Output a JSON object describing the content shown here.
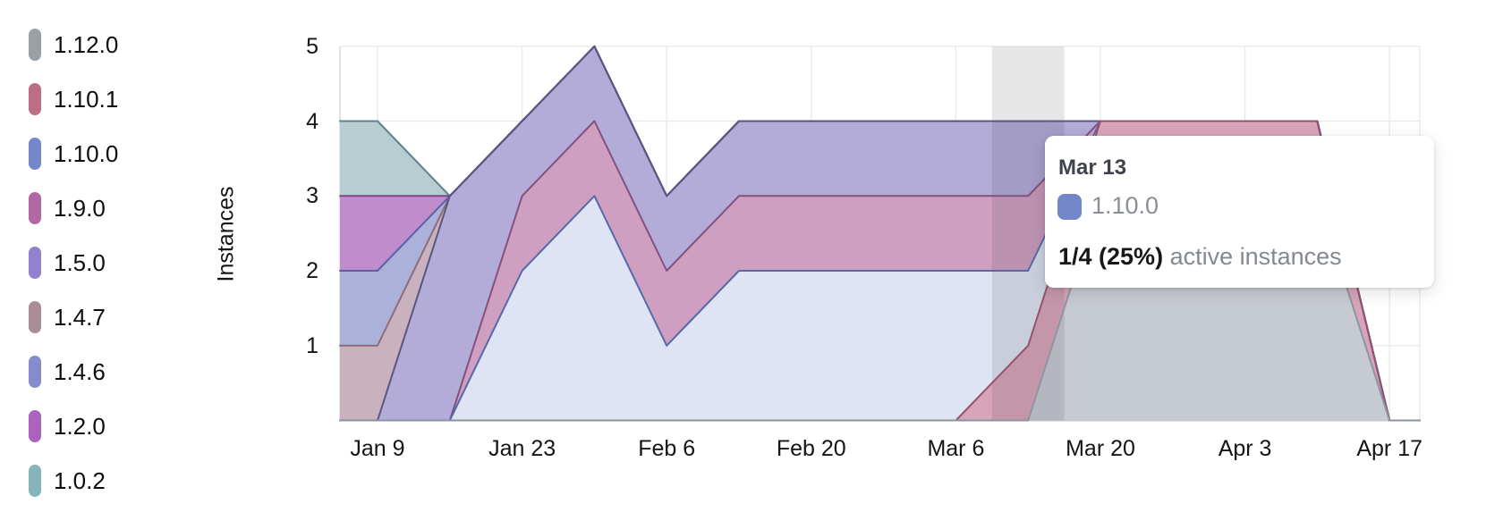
{
  "ylabel": "Instances",
  "legend": {
    "items": [
      {
        "label": "1.12.0",
        "color": "#99a0a7"
      },
      {
        "label": "1.10.1",
        "color": "#bd6e84"
      },
      {
        "label": "1.10.0",
        "color": "#7388cb"
      },
      {
        "label": "1.9.0",
        "color": "#b368a6"
      },
      {
        "label": "1.5.0",
        "color": "#9181cf"
      },
      {
        "label": "1.4.7",
        "color": "#aa8d98"
      },
      {
        "label": "1.4.6",
        "color": "#848bce"
      },
      {
        "label": "1.2.0",
        "color": "#ac62c1"
      },
      {
        "label": "1.0.2",
        "color": "#86b5b9"
      }
    ]
  },
  "chart_data": {
    "type": "area",
    "stacked": true,
    "title": "",
    "xlabel": "",
    "ylabel": "Instances",
    "x": [
      "Jan 9",
      "Jan 16",
      "Jan 23",
      "Jan 30",
      "Feb 6",
      "Feb 13",
      "Feb 20",
      "Feb 27",
      "Mar 6",
      "Mar 13",
      "Mar 20",
      "Mar 27",
      "Apr 3",
      "Apr 10",
      "Apr 17"
    ],
    "x_tick_labels": [
      "Jan 9",
      "Jan 23",
      "Feb 6",
      "Feb 20",
      "Mar 6",
      "Mar 20",
      "Apr 3",
      "Apr 17"
    ],
    "yticks": [
      1,
      2,
      3,
      4,
      5
    ],
    "ylim": [
      0,
      5
    ],
    "grid": true,
    "legend_position": "left",
    "highlight_x": "Mar 13",
    "series": [
      {
        "name": "1.12.0",
        "values": [
          0,
          0,
          0,
          0,
          0,
          0,
          0,
          0,
          0,
          0,
          3,
          3,
          3,
          3,
          0
        ],
        "fill": "#c6cad1",
        "stroke": "#8d95a2"
      },
      {
        "name": "1.10.1",
        "values": [
          0,
          0,
          0,
          0,
          0,
          0,
          0,
          0,
          0,
          1,
          1,
          1,
          1,
          1,
          0
        ],
        "fill": "#d8a4b9",
        "stroke": "#94536e"
      },
      {
        "name": "1.10.0",
        "values": [
          0,
          0,
          2,
          3,
          1,
          2,
          2,
          2,
          2,
          1,
          0,
          0,
          0,
          0,
          0
        ],
        "fill": "#dee4f4",
        "stroke": "#5669a8"
      },
      {
        "name": "1.9.0",
        "values": [
          0,
          0,
          1,
          1,
          1,
          1,
          1,
          1,
          1,
          1,
          0,
          0,
          0,
          0,
          0
        ],
        "fill": "#cf9fc2",
        "stroke": "#84507e"
      },
      {
        "name": "1.5.0",
        "values": [
          0,
          3,
          1,
          1,
          1,
          1,
          1,
          1,
          1,
          1,
          0,
          0,
          0,
          0,
          0
        ],
        "fill": "#b3abd8",
        "stroke": "#5a567e"
      },
      {
        "name": "1.4.7",
        "values": [
          1,
          0,
          0,
          0,
          0,
          0,
          0,
          0,
          0,
          0,
          0,
          0,
          0,
          0,
          0
        ],
        "fill": "#c9b1bd",
        "stroke": "#8d6c7c"
      },
      {
        "name": "1.4.6",
        "values": [
          1,
          0,
          0,
          0,
          0,
          0,
          0,
          0,
          0,
          0,
          0,
          0,
          0,
          0,
          0
        ],
        "fill": "#abb1d9",
        "stroke": "#5a62a4"
      },
      {
        "name": "1.2.0",
        "values": [
          1,
          0,
          0,
          0,
          0,
          0,
          0,
          0,
          0,
          0,
          0,
          0,
          0,
          0,
          0
        ],
        "fill": "#c08ccc",
        "stroke": "#7e4791"
      },
      {
        "name": "1.0.2",
        "values": [
          1,
          0,
          0,
          0,
          0,
          0,
          0,
          0,
          0,
          0,
          0,
          0,
          0,
          0,
          0
        ],
        "fill": "#b8cdd1",
        "stroke": "#5e818c"
      }
    ]
  },
  "tooltip": {
    "date": "Mar 13",
    "series": "1.10.0",
    "swatch_color": "#7286c8",
    "value": "1/4 (25%)",
    "note": "active instances"
  }
}
